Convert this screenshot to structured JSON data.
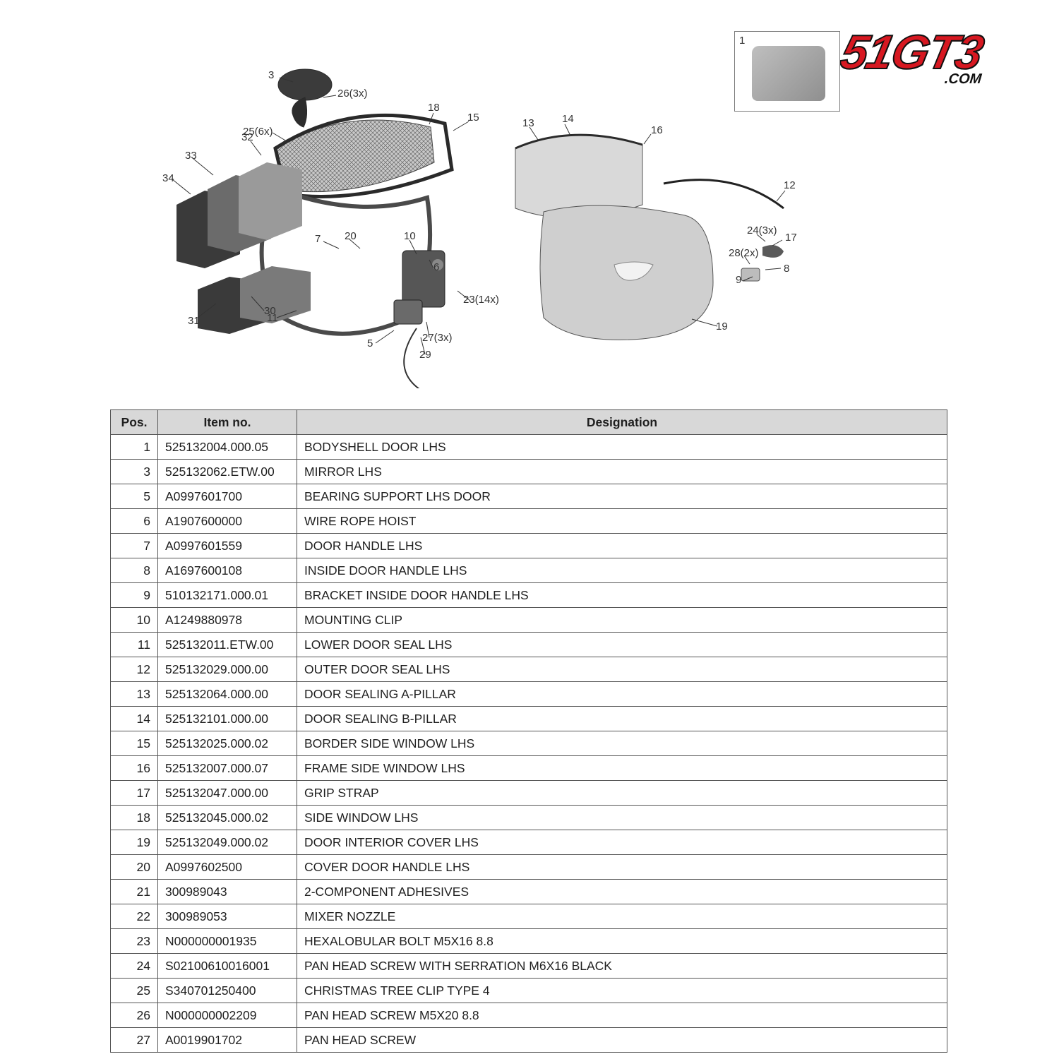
{
  "logo": {
    "big": "51GT3",
    "sub": ".COM"
  },
  "thumbnail": {
    "tag": "1"
  },
  "callouts": {
    "c3": "3",
    "c26": "26(3x)",
    "c25": "25(6x)",
    "c18": "18",
    "c15": "15",
    "c13": "13",
    "c14": "14",
    "c16": "16",
    "c12": "12",
    "c32": "32",
    "c33": "33",
    "c34": "34",
    "c31": "31",
    "c30": "30",
    "c7": "7",
    "c20": "20",
    "c10": "10",
    "c11": "11",
    "c6": "6",
    "c5": "5",
    "c23": "23(14x)",
    "c27": "27(3x)",
    "c29": "29",
    "c19": "19",
    "c24": "24(3x)",
    "c28": "28(2x)",
    "c17": "17",
    "c8": "8",
    "c9": "9"
  },
  "table": {
    "headers": {
      "pos": "Pos.",
      "item": "Item no.",
      "designation": "Designation"
    },
    "rows": [
      {
        "pos": "1",
        "item": "525132004.000.05",
        "designation": "BODYSHELL DOOR LHS"
      },
      {
        "pos": "3",
        "item": "525132062.ETW.00",
        "designation": "MIRROR LHS"
      },
      {
        "pos": "5",
        "item": "A0997601700",
        "designation": "BEARING SUPPORT LHS DOOR"
      },
      {
        "pos": "6",
        "item": "A1907600000",
        "designation": "WIRE ROPE HOIST"
      },
      {
        "pos": "7",
        "item": "A0997601559",
        "designation": "DOOR HANDLE LHS"
      },
      {
        "pos": "8",
        "item": "A1697600108",
        "designation": "INSIDE DOOR HANDLE LHS"
      },
      {
        "pos": "9",
        "item": "510132171.000.01",
        "designation": "BRACKET INSIDE DOOR HANDLE LHS"
      },
      {
        "pos": "10",
        "item": "A1249880978",
        "designation": "MOUNTING CLIP"
      },
      {
        "pos": "11",
        "item": "525132011.ETW.00",
        "designation": "LOWER DOOR SEAL LHS"
      },
      {
        "pos": "12",
        "item": "525132029.000.00",
        "designation": "OUTER DOOR SEAL LHS"
      },
      {
        "pos": "13",
        "item": "525132064.000.00",
        "designation": "DOOR SEALING A-PILLAR"
      },
      {
        "pos": "14",
        "item": "525132101.000.00",
        "designation": "DOOR SEALING B-PILLAR"
      },
      {
        "pos": "15",
        "item": "525132025.000.02",
        "designation": "BORDER SIDE WINDOW LHS"
      },
      {
        "pos": "16",
        "item": "525132007.000.07",
        "designation": "FRAME SIDE WINDOW LHS"
      },
      {
        "pos": "17",
        "item": "525132047.000.00",
        "designation": "GRIP STRAP"
      },
      {
        "pos": "18",
        "item": "525132045.000.02",
        "designation": "SIDE WINDOW LHS"
      },
      {
        "pos": "19",
        "item": "525132049.000.02",
        "designation": "DOOR INTERIOR COVER LHS"
      },
      {
        "pos": "20",
        "item": "A0997602500",
        "designation": "COVER DOOR HANDLE LHS"
      },
      {
        "pos": "21",
        "item": "300989043",
        "designation": "2-COMPONENT ADHESIVES"
      },
      {
        "pos": "22",
        "item": "300989053",
        "designation": "MIXER NOZZLE"
      },
      {
        "pos": "23",
        "item": "N000000001935",
        "designation": "HEXALOBULAR BOLT M5X16 8.8"
      },
      {
        "pos": "24",
        "item": "S02100610016001",
        "designation": "PAN HEAD SCREW WITH SERRATION M6X16 BLACK"
      },
      {
        "pos": "25",
        "item": "S340701250400",
        "designation": "CHRISTMAS TREE CLIP TYPE 4"
      },
      {
        "pos": "26",
        "item": "N000000002209",
        "designation": "PAN HEAD SCREW M5X20 8.8"
      },
      {
        "pos": "27",
        "item": "A0019901702",
        "designation": "PAN HEAD SCREW"
      }
    ]
  }
}
